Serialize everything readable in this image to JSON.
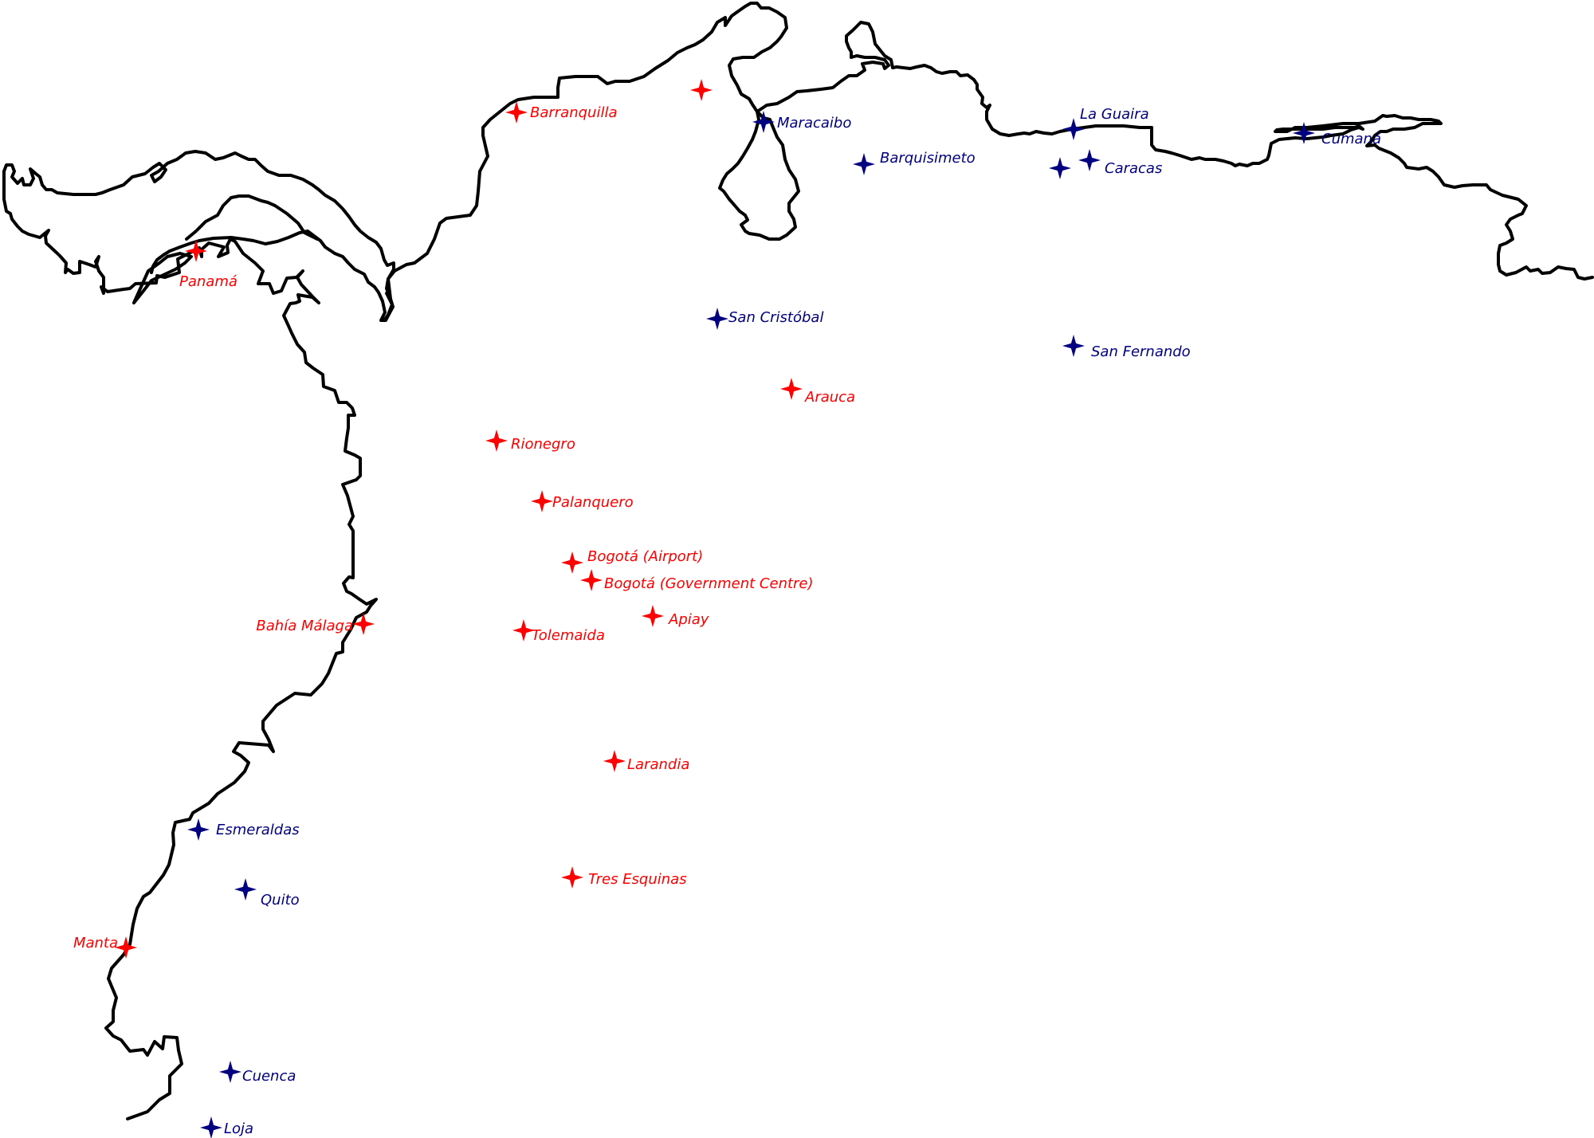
{
  "colors": {
    "red_group": "#ff0000",
    "blue_group": "#000080",
    "coastline": "#000000",
    "background": "#ffffff"
  },
  "marker_icon": "four-point-star-icon",
  "markers": [
    {
      "id": "barranquilla",
      "label": "Barranquilla",
      "group": "red"
    },
    {
      "id": "unlabeled-north",
      "label": "",
      "group": "red"
    },
    {
      "id": "panama",
      "label": "Panamá",
      "group": "red"
    },
    {
      "id": "arauca",
      "label": "Arauca",
      "group": "red"
    },
    {
      "id": "rionegro",
      "label": "Rionegro",
      "group": "red"
    },
    {
      "id": "palanquero",
      "label": "Palanquero",
      "group": "red"
    },
    {
      "id": "bogota-airport",
      "label": "Bogotá (Airport)",
      "group": "red"
    },
    {
      "id": "bogota-government",
      "label": "Bogotá (Government Centre)",
      "group": "red"
    },
    {
      "id": "apiay",
      "label": "Apiay",
      "group": "red"
    },
    {
      "id": "bahia-malaga",
      "label": "Bahía Málaga",
      "group": "red"
    },
    {
      "id": "tolemaida",
      "label": "Tolemaida",
      "group": "red"
    },
    {
      "id": "larandia",
      "label": "Larandia",
      "group": "red"
    },
    {
      "id": "tres-esquinas",
      "label": "Tres Esquinas",
      "group": "red"
    },
    {
      "id": "manta",
      "label": "Manta",
      "group": "red"
    },
    {
      "id": "maracaibo",
      "label": "Maracaibo",
      "group": "blue"
    },
    {
      "id": "barquisimeto",
      "label": "Barquisimeto",
      "group": "blue"
    },
    {
      "id": "la-guaira",
      "label": "La Guaira",
      "group": "blue"
    },
    {
      "id": "caracas",
      "label": "Caracas",
      "group": "blue"
    },
    {
      "id": "unlabeled-caracas",
      "label": "",
      "group": "blue"
    },
    {
      "id": "cumana",
      "label": "Cumaná",
      "group": "blue"
    },
    {
      "id": "san-cristobal",
      "label": "San Cristóbal",
      "group": "blue"
    },
    {
      "id": "san-fernando",
      "label": "San Fernando",
      "group": "blue"
    },
    {
      "id": "esmeraldas",
      "label": "Esmeraldas",
      "group": "blue"
    },
    {
      "id": "quito",
      "label": "Quito",
      "group": "blue"
    },
    {
      "id": "cuenca",
      "label": "Cuenca",
      "group": "blue"
    },
    {
      "id": "loja",
      "label": "Loja",
      "group": "blue"
    }
  ]
}
